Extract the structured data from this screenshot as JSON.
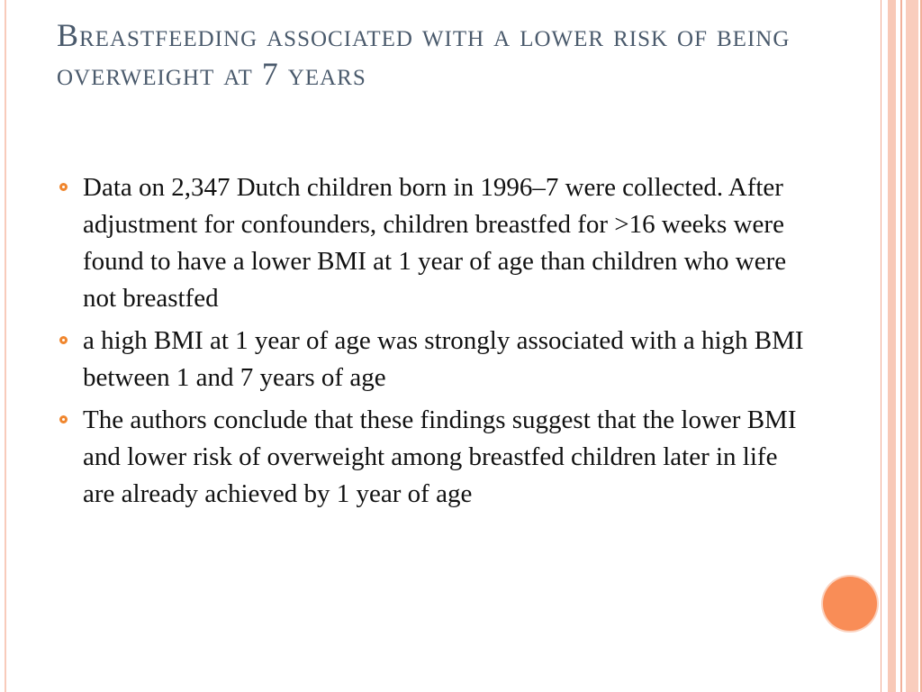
{
  "slide": {
    "title": "Breastfeeding associated with a lower risk of being overweight at 7 years",
    "bullets": [
      "Data on 2,347 Dutch children born in 1996–7 were collected. After adjustment for confounders, children breastfed for >16 weeks were found to have a lower BMI at 1 year of age than children who were not breastfed",
      "a high BMI at 1 year of age was strongly associated with a high BMI between 1 and 7 years of age",
      "The authors conclude that these findings suggest that the lower BMI and lower risk of overweight among breastfed children later in life are already achieved by 1 year of age"
    ]
  },
  "colors": {
    "title": "#4a5a6c",
    "bullet_marker": "#f0862e",
    "accent_dot": "#f98d57",
    "stripe": "#f8c9b7"
  },
  "icons": {
    "bullet": "ring-bullet-icon",
    "decoration": "orange-circle-icon"
  }
}
